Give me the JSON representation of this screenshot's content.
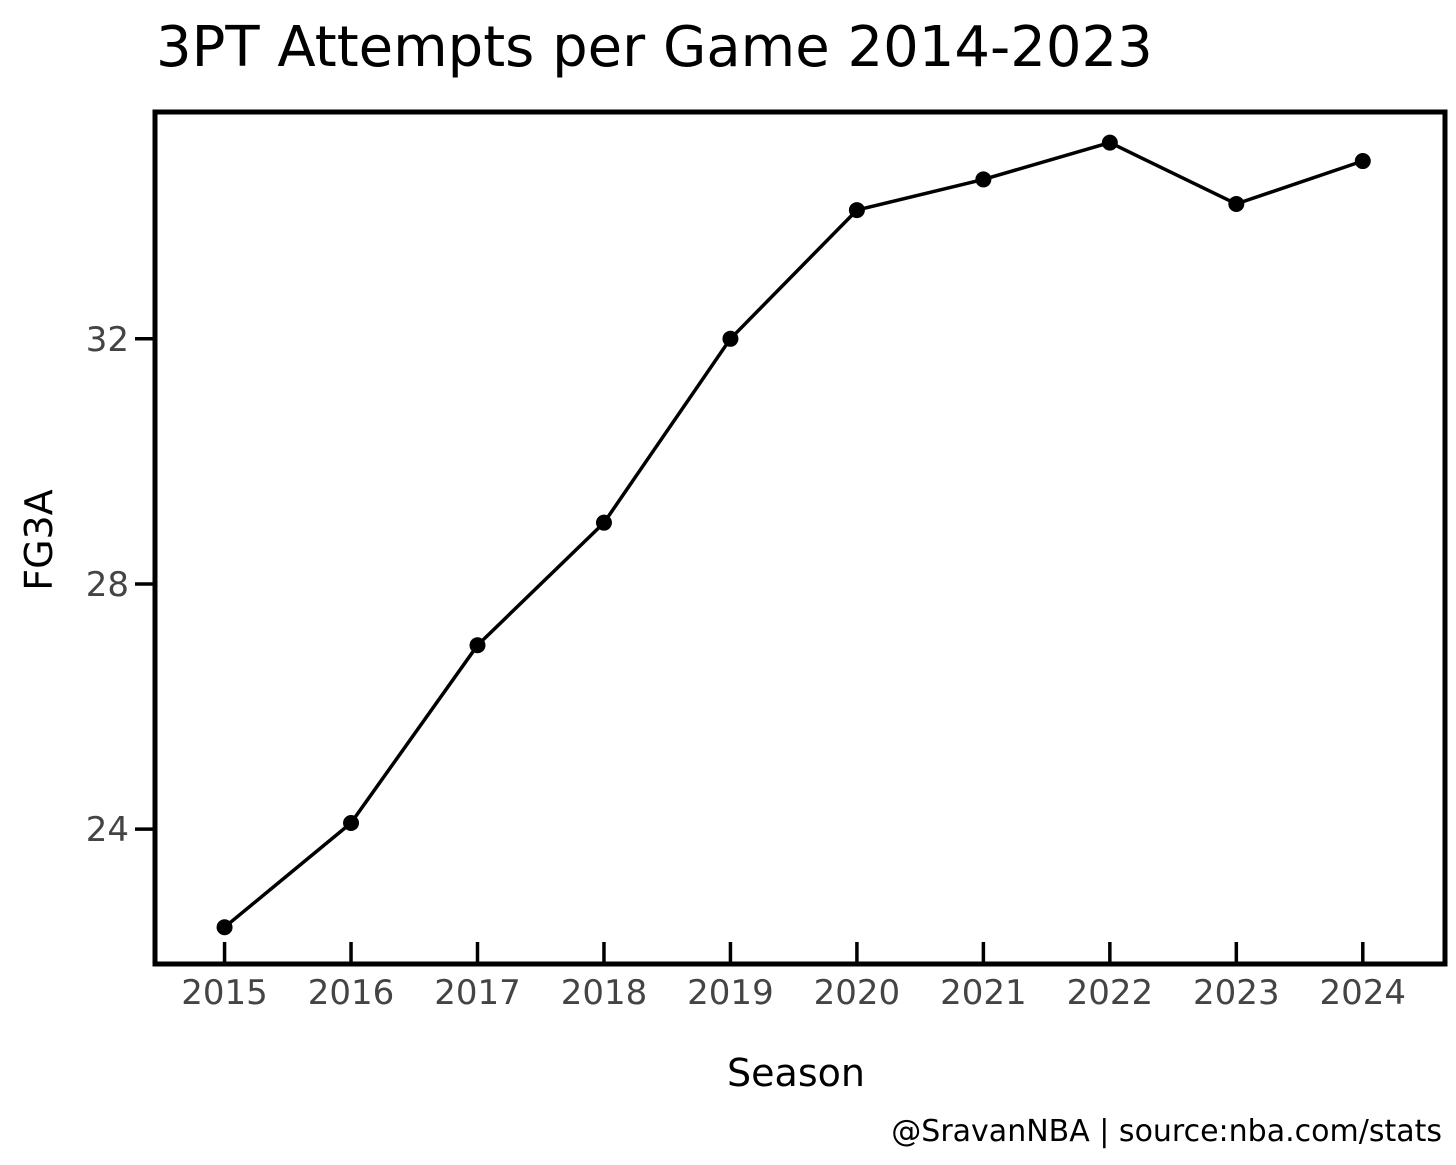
{
  "chart_data": {
    "type": "line",
    "title": "3PT Attempts per Game 2014-2023",
    "xlabel": "Season",
    "ylabel": "FG3A",
    "x": [
      2015,
      2016,
      2017,
      2018,
      2019,
      2020,
      2021,
      2022,
      2023,
      2024
    ],
    "x_tick_labels": [
      "2015",
      "2016",
      "2017",
      "2018",
      "2019",
      "2020",
      "2021",
      "2022",
      "2023",
      "2024"
    ],
    "series": [
      {
        "values": [
          22.4,
          24.1,
          27.0,
          29.0,
          32.0,
          34.1,
          34.6,
          35.2,
          34.2,
          34.9
        ]
      }
    ],
    "y_ticks": [
      24,
      28,
      32
    ],
    "y_tick_labels": [
      "24",
      "28",
      "32"
    ],
    "xlim": [
      2014.45,
      2024.65
    ],
    "ylim": [
      21.8,
      35.7
    ],
    "grid": false,
    "legend": "none",
    "credit": "@SravanNBA | source:nba.com/stats",
    "colors": {
      "line": "#000000",
      "marker": "#000000",
      "frame": "#000000",
      "tick_text": "#444444"
    }
  }
}
